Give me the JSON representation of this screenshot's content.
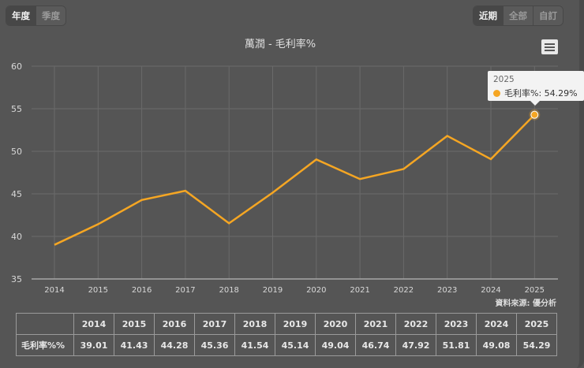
{
  "period_toggle": {
    "items": [
      {
        "label": "年度",
        "active": true
      },
      {
        "label": "季度",
        "active": false
      }
    ]
  },
  "range_toggle": {
    "items": [
      {
        "label": "近期",
        "active": true
      },
      {
        "label": "全部",
        "active": false
      },
      {
        "label": "自訂",
        "active": false
      }
    ]
  },
  "chart": {
    "title": "萬潤 - 毛利率%",
    "menu_icon": "hamburger-menu-icon",
    "source": "資料來源: 優分析",
    "line_color": "#f5a623",
    "tooltip": {
      "year": "2025",
      "series": "毛利率%",
      "value_text": "毛利率%: 54.29%"
    }
  },
  "table": {
    "row_label": "毛利率%%",
    "headers": [
      "2014",
      "2015",
      "2016",
      "2017",
      "2018",
      "2019",
      "2020",
      "2021",
      "2022",
      "2023",
      "2024",
      "2025"
    ],
    "values": [
      "39.01",
      "41.43",
      "44.28",
      "45.36",
      "41.54",
      "45.14",
      "49.04",
      "46.74",
      "47.92",
      "51.81",
      "49.08",
      "54.29"
    ]
  },
  "chart_data": {
    "type": "line",
    "title": "萬潤 - 毛利率%",
    "xlabel": "",
    "ylabel": "",
    "categories": [
      "2014",
      "2015",
      "2016",
      "2017",
      "2018",
      "2019",
      "2020",
      "2021",
      "2022",
      "2023",
      "2024",
      "2025"
    ],
    "series": [
      {
        "name": "毛利率%",
        "color": "#f5a623",
        "values": [
          39.01,
          41.43,
          44.28,
          45.36,
          41.54,
          45.14,
          49.04,
          46.74,
          47.92,
          51.81,
          49.08,
          54.29
        ]
      }
    ],
    "ylim": [
      35,
      60
    ],
    "yticks": [
      35,
      40,
      45,
      50,
      55,
      60
    ],
    "grid": true,
    "legend": "none",
    "annotations": [
      "資料來源: 優分析"
    ],
    "highlighted_point": {
      "x": "2025",
      "value": 54.29
    }
  }
}
